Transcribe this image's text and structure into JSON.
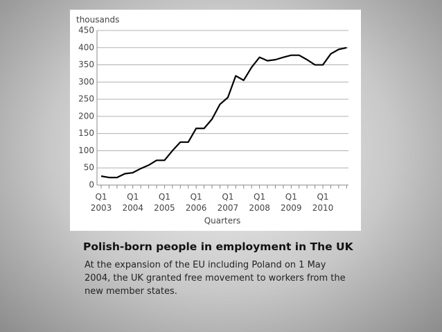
{
  "chart_data": {
    "type": "line",
    "y_label": "thousands",
    "x_label": "Quarters",
    "categories": [
      "Q1 2003",
      null,
      null,
      null,
      "Q1 2004",
      null,
      null,
      null,
      "Q1 2005",
      null,
      null,
      null,
      "Q1 2006",
      null,
      null,
      null,
      "Q1 2007",
      null,
      null,
      null,
      "Q1 2008",
      null,
      null,
      null,
      "Q1 2009",
      null,
      null,
      null,
      "Q1 2010",
      null,
      null,
      null
    ],
    "values": [
      26,
      22,
      22,
      33,
      36,
      48,
      58,
      72,
      72,
      100,
      125,
      125,
      165,
      165,
      192,
      235,
      255,
      318,
      305,
      343,
      372,
      362,
      365,
      372,
      378,
      378,
      365,
      350,
      350,
      382,
      395,
      400
    ],
    "color": "#000000",
    "ylim": [
      0,
      450
    ],
    "yticks": [
      0,
      50,
      100,
      150,
      200,
      250,
      300,
      350,
      400,
      450
    ],
    "grid": true
  },
  "caption_title": "Polish-born people in employment in The UK",
  "caption": "At the expansion of the EU including Poland on 1 May 2004, the UK granted free movement to workers from the new member states."
}
